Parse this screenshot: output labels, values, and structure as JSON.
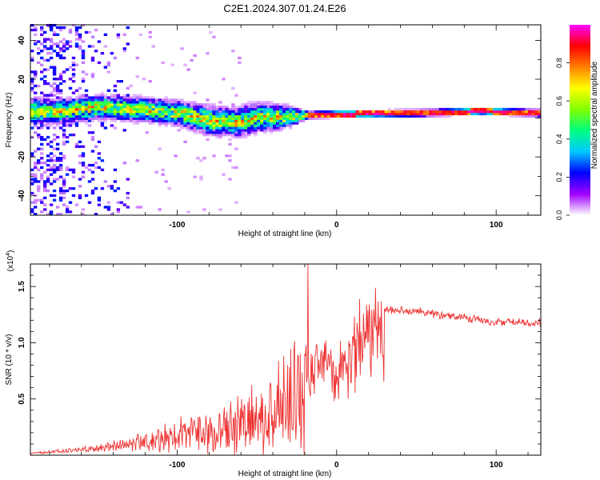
{
  "title": "C2E1.2024.307.01.24.E26",
  "chart_data": [
    {
      "type": "heatmap",
      "title": "",
      "xlabel": "Height of straight line (km)",
      "ylabel": "Frequency (Hz)",
      "xlim": [
        -192,
        128
      ],
      "ylim": [
        -50,
        48
      ],
      "xticks": [
        -100,
        0,
        100
      ],
      "yticks": [
        -40,
        -20,
        0,
        20,
        40
      ],
      "colorbar": {
        "label": "Normalized spectral amplitude",
        "range": [
          0,
          1
        ],
        "ticks": [
          0.0,
          0.2,
          0.4,
          0.6,
          0.8
        ],
        "tick_labels": [
          "0.0",
          "0.2",
          "0.4",
          "0.6",
          "0.8"
        ],
        "colormap": [
          "#ffffff",
          "#a000ff",
          "#0000ff",
          "#00c8ff",
          "#00ff80",
          "#80ff00",
          "#ffff00",
          "#ff8000",
          "#ff0000",
          "#ff00ff"
        ]
      },
      "ridge": [
        {
          "x": -175,
          "f": 3,
          "w": 5
        },
        {
          "x": -150,
          "f": 5,
          "w": 5
        },
        {
          "x": -125,
          "f": 4,
          "w": 5
        },
        {
          "x": -100,
          "f": 2,
          "w": 5
        },
        {
          "x": -80,
          "f": -2,
          "w": 6
        },
        {
          "x": -65,
          "f": -3,
          "w": 6
        },
        {
          "x": -50,
          "f": 0,
          "w": 6
        },
        {
          "x": -35,
          "f": 0,
          "w": 5
        },
        {
          "x": -20,
          "f": 1,
          "w": 2
        },
        {
          "x": 0,
          "f": 1.5,
          "w": 2
        },
        {
          "x": 50,
          "f": 2,
          "w": 2
        },
        {
          "x": 90,
          "f": 3,
          "w": 2
        },
        {
          "x": 128,
          "f": 2,
          "w": 2
        }
      ]
    },
    {
      "type": "line",
      "title": "",
      "xlabel": "Height of straight line (km)",
      "ylabel": "SNR (10 * v/v)",
      "y_scale_label": "(x10",
      "y_scale_exp": "4",
      "xlim": [
        -192,
        128
      ],
      "ylim": [
        0,
        17000
      ],
      "xticks": [
        -100,
        0,
        100
      ],
      "yticks": [
        5000,
        10000,
        15000
      ],
      "ytick_labels": [
        "0.5",
        "1.0",
        "1.5"
      ],
      "series": [
        {
          "color": "#ee3333",
          "x": [
            -192,
            -170,
            -150,
            -130,
            -110,
            -90,
            -70,
            -55,
            -45,
            -35,
            -28,
            -22,
            -18,
            -12,
            -6,
            0,
            6,
            12,
            20,
            28,
            35,
            50,
            70,
            90,
            100,
            110,
            128
          ],
          "y": [
            200,
            500,
            800,
            1300,
            2200,
            3000,
            3800,
            4500,
            5000,
            6500,
            8000,
            9500,
            9000,
            8800,
            9500,
            8000,
            10000,
            11500,
            12500,
            13000,
            13200,
            13000,
            12600,
            12300,
            12000,
            12100,
            12000
          ],
          "spike": {
            "x": -18,
            "y": 17000
          }
        }
      ]
    }
  ]
}
